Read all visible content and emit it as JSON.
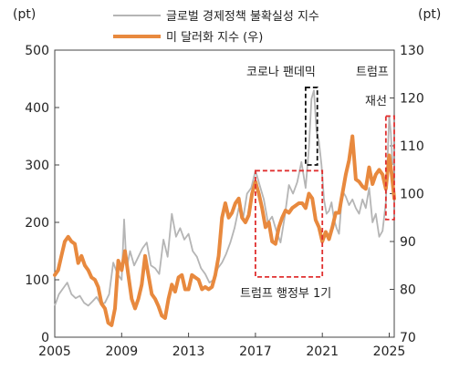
{
  "chart_data": {
    "type": "line",
    "left_axis_unit": "(pt)",
    "right_axis_unit": "(pt)",
    "x_ticks": [
      "2005",
      "2009",
      "2013",
      "2017",
      "2021",
      "2025"
    ],
    "xlim": [
      2005,
      2025.3
    ],
    "y_left_ticks": [
      "0",
      "100",
      "200",
      "300",
      "400",
      "500"
    ],
    "y_left_lim": [
      0,
      500
    ],
    "y_right_ticks": [
      "70",
      "80",
      "90",
      "100",
      "110",
      "120",
      "130"
    ],
    "y_right_lim": [
      70,
      130
    ],
    "series": [
      {
        "name": "글로벌 경제정책 불확실성 지수",
        "axis": "left",
        "color": "#b5b5b5",
        "points": [
          [
            2005.0,
            55
          ],
          [
            2005.25,
            75
          ],
          [
            2005.5,
            85
          ],
          [
            2005.75,
            95
          ],
          [
            2006.0,
            75
          ],
          [
            2006.25,
            68
          ],
          [
            2006.5,
            72
          ],
          [
            2006.75,
            60
          ],
          [
            2007.0,
            55
          ],
          [
            2007.25,
            62
          ],
          [
            2007.5,
            70
          ],
          [
            2007.75,
            58
          ],
          [
            2008.0,
            60
          ],
          [
            2008.25,
            75
          ],
          [
            2008.5,
            130
          ],
          [
            2008.75,
            110
          ],
          [
            2009.0,
            100
          ],
          [
            2009.15,
            205
          ],
          [
            2009.3,
            120
          ],
          [
            2009.5,
            150
          ],
          [
            2009.75,
            125
          ],
          [
            2010.0,
            140
          ],
          [
            2010.25,
            155
          ],
          [
            2010.5,
            165
          ],
          [
            2010.75,
            125
          ],
          [
            2011.0,
            120
          ],
          [
            2011.25,
            110
          ],
          [
            2011.5,
            170
          ],
          [
            2011.75,
            140
          ],
          [
            2012.0,
            215
          ],
          [
            2012.25,
            175
          ],
          [
            2012.5,
            190
          ],
          [
            2012.75,
            170
          ],
          [
            2013.0,
            180
          ],
          [
            2013.25,
            150
          ],
          [
            2013.5,
            140
          ],
          [
            2013.75,
            120
          ],
          [
            2014.0,
            110
          ],
          [
            2014.25,
            95
          ],
          [
            2014.5,
            100
          ],
          [
            2014.75,
            120
          ],
          [
            2015.0,
            130
          ],
          [
            2015.25,
            145
          ],
          [
            2015.5,
            165
          ],
          [
            2015.75,
            190
          ],
          [
            2016.0,
            225
          ],
          [
            2016.25,
            205
          ],
          [
            2016.5,
            250
          ],
          [
            2016.75,
            260
          ],
          [
            2017.0,
            290
          ],
          [
            2017.25,
            265
          ],
          [
            2017.5,
            240
          ],
          [
            2017.75,
            200
          ],
          [
            2018.0,
            210
          ],
          [
            2018.25,
            185
          ],
          [
            2018.5,
            165
          ],
          [
            2018.75,
            210
          ],
          [
            2019.0,
            265
          ],
          [
            2019.25,
            250
          ],
          [
            2019.5,
            270
          ],
          [
            2019.75,
            305
          ],
          [
            2020.0,
            260
          ],
          [
            2020.2,
            330
          ],
          [
            2020.35,
            415
          ],
          [
            2020.5,
            430
          ],
          [
            2020.65,
            360
          ],
          [
            2020.8,
            340
          ],
          [
            2020.95,
            300
          ],
          [
            2021.1,
            240
          ],
          [
            2021.25,
            215
          ],
          [
            2021.4,
            220
          ],
          [
            2021.55,
            235
          ],
          [
            2021.7,
            205
          ],
          [
            2021.85,
            190
          ],
          [
            2022.0,
            180
          ],
          [
            2022.2,
            255
          ],
          [
            2022.4,
            245
          ],
          [
            2022.6,
            230
          ],
          [
            2022.8,
            240
          ],
          [
            2023.0,
            225
          ],
          [
            2023.2,
            215
          ],
          [
            2023.4,
            240
          ],
          [
            2023.6,
            225
          ],
          [
            2023.8,
            260
          ],
          [
            2024.0,
            200
          ],
          [
            2024.2,
            215
          ],
          [
            2024.4,
            175
          ],
          [
            2024.6,
            185
          ],
          [
            2024.8,
            235
          ],
          [
            2025.0,
            385
          ],
          [
            2025.1,
            355
          ],
          [
            2025.2,
            300
          ]
        ]
      },
      {
        "name": "미 달러화 지수 (우)",
        "axis": "right",
        "color": "#e8893e",
        "points": [
          [
            2005.0,
            83
          ],
          [
            2005.2,
            84
          ],
          [
            2005.4,
            87
          ],
          [
            2005.6,
            90
          ],
          [
            2005.8,
            91
          ],
          [
            2006.0,
            90
          ],
          [
            2006.2,
            89.5
          ],
          [
            2006.4,
            85.5
          ],
          [
            2006.6,
            87
          ],
          [
            2006.8,
            85
          ],
          [
            2007.0,
            84
          ],
          [
            2007.2,
            82.5
          ],
          [
            2007.4,
            82
          ],
          [
            2007.6,
            80.5
          ],
          [
            2007.8,
            77
          ],
          [
            2008.0,
            76
          ],
          [
            2008.2,
            73
          ],
          [
            2008.4,
            72.5
          ],
          [
            2008.6,
            76
          ],
          [
            2008.8,
            86
          ],
          [
            2009.0,
            84
          ],
          [
            2009.2,
            88
          ],
          [
            2009.4,
            83
          ],
          [
            2009.6,
            78
          ],
          [
            2009.8,
            76
          ],
          [
            2010.0,
            78
          ],
          [
            2010.2,
            81
          ],
          [
            2010.4,
            87
          ],
          [
            2010.6,
            83
          ],
          [
            2010.8,
            79
          ],
          [
            2011.0,
            78
          ],
          [
            2011.2,
            76.5
          ],
          [
            2011.4,
            74.5
          ],
          [
            2011.6,
            74
          ],
          [
            2011.8,
            78
          ],
          [
            2012.0,
            81
          ],
          [
            2012.2,
            79.5
          ],
          [
            2012.4,
            82.5
          ],
          [
            2012.6,
            83
          ],
          [
            2012.8,
            80
          ],
          [
            2013.0,
            80
          ],
          [
            2013.2,
            83
          ],
          [
            2013.4,
            82.5
          ],
          [
            2013.6,
            82
          ],
          [
            2013.8,
            80
          ],
          [
            2014.0,
            80.5
          ],
          [
            2014.2,
            80
          ],
          [
            2014.4,
            80.5
          ],
          [
            2014.6,
            83
          ],
          [
            2014.8,
            87
          ],
          [
            2015.0,
            95
          ],
          [
            2015.2,
            98
          ],
          [
            2015.4,
            95
          ],
          [
            2015.6,
            96
          ],
          [
            2015.8,
            98
          ],
          [
            2016.0,
            99
          ],
          [
            2016.2,
            95
          ],
          [
            2016.4,
            94
          ],
          [
            2016.6,
            95.5
          ],
          [
            2016.8,
            100
          ],
          [
            2017.0,
            102.5
          ],
          [
            2017.2,
            100
          ],
          [
            2017.4,
            97
          ],
          [
            2017.6,
            93
          ],
          [
            2017.8,
            94
          ],
          [
            2018.0,
            90
          ],
          [
            2018.2,
            89.5
          ],
          [
            2018.4,
            93
          ],
          [
            2018.6,
            95
          ],
          [
            2018.8,
            96.5
          ],
          [
            2019.0,
            96
          ],
          [
            2019.2,
            97
          ],
          [
            2019.4,
            97.5
          ],
          [
            2019.6,
            98
          ],
          [
            2019.8,
            98
          ],
          [
            2020.0,
            97
          ],
          [
            2020.2,
            100
          ],
          [
            2020.4,
            99
          ],
          [
            2020.6,
            94.5
          ],
          [
            2020.8,
            93
          ],
          [
            2021.0,
            90
          ],
          [
            2021.2,
            92
          ],
          [
            2021.4,
            90.5
          ],
          [
            2021.6,
            93
          ],
          [
            2021.8,
            96
          ],
          [
            2022.0,
            96
          ],
          [
            2022.2,
            100
          ],
          [
            2022.4,
            104
          ],
          [
            2022.6,
            107
          ],
          [
            2022.8,
            112
          ],
          [
            2023.0,
            103
          ],
          [
            2023.2,
            102.5
          ],
          [
            2023.4,
            101.5
          ],
          [
            2023.6,
            101
          ],
          [
            2023.8,
            105.5
          ],
          [
            2024.0,
            102
          ],
          [
            2024.2,
            104
          ],
          [
            2024.4,
            105
          ],
          [
            2024.6,
            104
          ],
          [
            2024.8,
            101
          ],
          [
            2025.0,
            108
          ],
          [
            2025.15,
            104
          ],
          [
            2025.3,
            99
          ]
        ]
      }
    ],
    "annotations": [
      {
        "label": "코로나 팬데믹",
        "box": {
          "x": [
            2020.0,
            2020.7
          ],
          "y_left": [
            300,
            435
          ]
        }
      },
      {
        "label": "트럼프\n재선",
        "box": {
          "x": [
            2024.8,
            2025.3
          ],
          "y_left": [
            205,
            385
          ]
        }
      },
      {
        "label": "트럼프 행정부 1기",
        "box": {
          "x": [
            2017.0,
            2021.0
          ],
          "y_left": [
            105,
            290
          ]
        }
      }
    ],
    "grid": false,
    "legend_placement": "top-center"
  }
}
